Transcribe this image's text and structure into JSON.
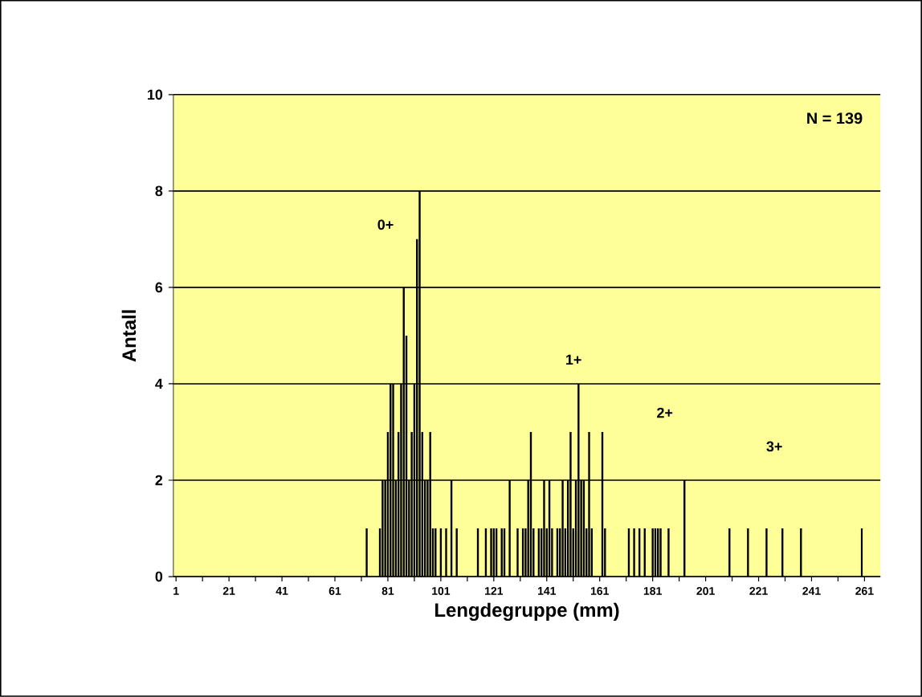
{
  "chart_data": {
    "type": "bar",
    "xlabel": "Lengdegruppe (mm)",
    "ylabel": "Antall",
    "color": "#000000",
    "x": [
      73,
      78,
      79,
      80,
      81,
      82,
      83,
      84,
      85,
      86,
      87,
      88,
      89,
      90,
      91,
      92,
      93,
      94,
      95,
      96,
      97,
      98,
      99,
      101,
      103,
      105,
      107,
      115,
      118,
      120,
      121,
      122,
      124,
      125,
      127,
      130,
      132,
      133,
      134,
      135,
      136,
      138,
      139,
      140,
      141,
      142,
      143,
      145,
      146,
      147,
      148,
      149,
      150,
      151,
      152,
      153,
      154,
      155,
      156,
      157,
      158,
      162,
      163,
      172,
      174,
      176,
      178,
      181,
      182,
      183,
      184,
      187,
      193,
      210,
      217,
      224,
      230,
      237,
      260
    ],
    "values": [
      1,
      1,
      2,
      2,
      3,
      4,
      4,
      2,
      3,
      4,
      6,
      5,
      2,
      3,
      4,
      7,
      8,
      3,
      2,
      2,
      3,
      1,
      1,
      1,
      1,
      2,
      1,
      1,
      1,
      1,
      1,
      1,
      1,
      1,
      2,
      1,
      1,
      1,
      2,
      3,
      1,
      1,
      1,
      2,
      1,
      2,
      1,
      1,
      1,
      2,
      1,
      2,
      3,
      1,
      2,
      4,
      2,
      2,
      1,
      3,
      1,
      3,
      1,
      1,
      1,
      1,
      1,
      1,
      1,
      1,
      1,
      1,
      2,
      1,
      1,
      1,
      1,
      1,
      1
    ],
    "xlim": [
      0,
      267
    ],
    "xticks": [
      1,
      {
        "value": 11,
        "label": null
      },
      21,
      {
        "value": 31,
        "label": null
      },
      41,
      {
        "value": 51,
        "label": null
      },
      61,
      {
        "value": 71,
        "label": null
      },
      81,
      {
        "value": 91,
        "label": null
      },
      101,
      {
        "value": 111,
        "label": null
      },
      121,
      {
        "value": 131,
        "label": null
      },
      141,
      {
        "value": 151,
        "label": null
      },
      161,
      {
        "value": 171,
        "label": null
      },
      181,
      {
        "value": 191,
        "label": null
      },
      201,
      {
        "value": 211,
        "label": null
      },
      221,
      {
        "value": 231,
        "label": null
      },
      241,
      {
        "value": 251,
        "label": null
      },
      261
    ],
    "ylim": [
      0,
      10
    ],
    "yticks": [
      0,
      2,
      4,
      6,
      8,
      10
    ],
    "grid": "y",
    "annotations": [
      "N = 139",
      "0+",
      "1+",
      "2+",
      "3+"
    ]
  }
}
